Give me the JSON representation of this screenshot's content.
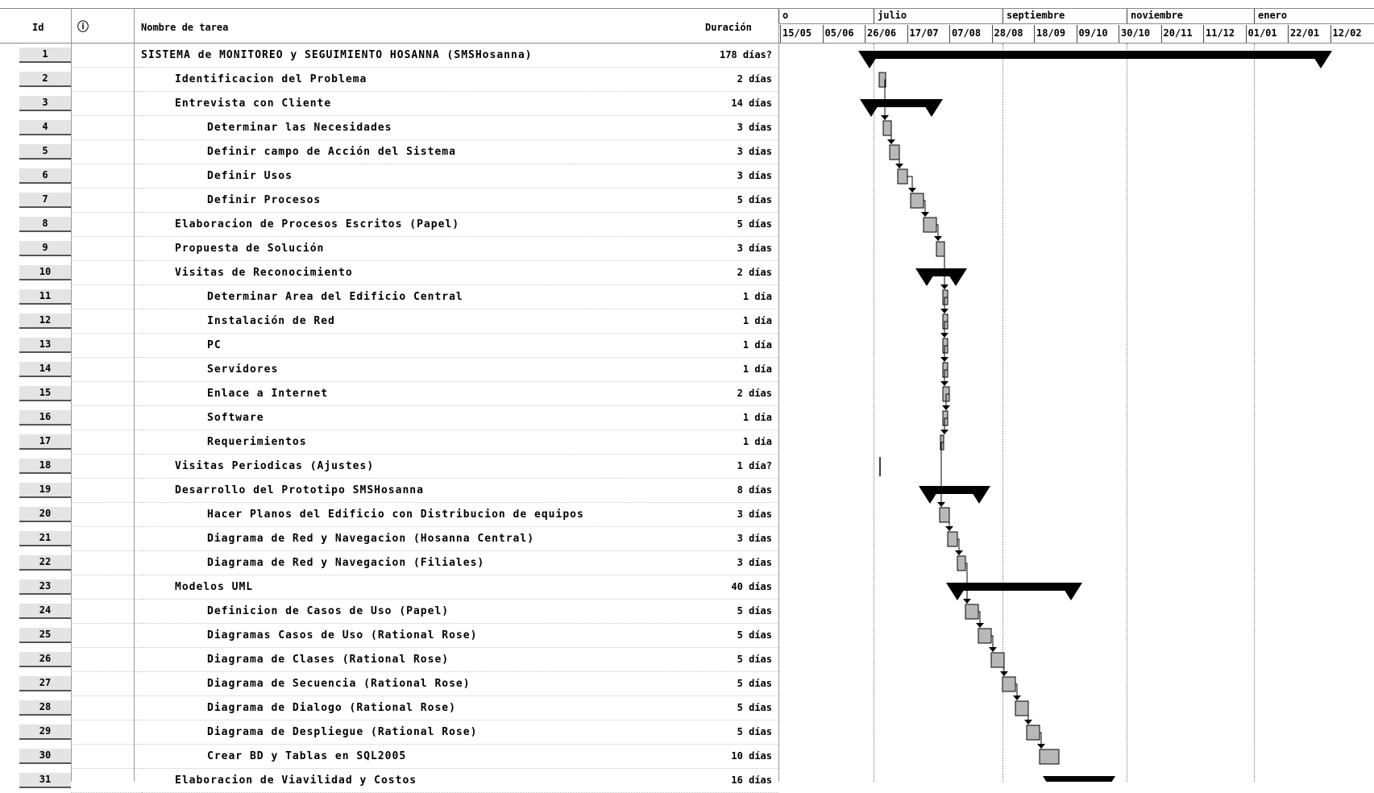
{
  "header": {
    "id_label": "Id",
    "indicator_icon": "info-indicator-icon",
    "name_label": "Nombre de tarea",
    "duration_label": "Duración"
  },
  "timescale": {
    "months": [
      "o",
      "julio",
      "septiembre",
      "noviembre",
      "enero"
    ],
    "dates": [
      "15/05",
      "05/06",
      "26/06",
      "17/07",
      "07/08",
      "28/08",
      "18/09",
      "09/10",
      "30/10",
      "20/11",
      "11/12",
      "01/01",
      "22/01",
      "12/02"
    ]
  },
  "tasks": [
    {
      "id": "1",
      "name": "SISTEMA de MONITOREO y SEGUIMIENTO HOSANNA (SMSHosanna)",
      "duration": "178 días?",
      "level": 0
    },
    {
      "id": "2",
      "name": "Identificacion del Problema",
      "duration": "2 días",
      "level": 1
    },
    {
      "id": "3",
      "name": "Entrevista con Cliente",
      "duration": "14 días",
      "level": 1
    },
    {
      "id": "4",
      "name": "Determinar las Necesidades",
      "duration": "3 días",
      "level": 2
    },
    {
      "id": "5",
      "name": "Definir campo de Acción del Sistema",
      "duration": "3 días",
      "level": 2
    },
    {
      "id": "6",
      "name": "Definir Usos",
      "duration": "3 días",
      "level": 2
    },
    {
      "id": "7",
      "name": "Definir Procesos",
      "duration": "5 días",
      "level": 2
    },
    {
      "id": "8",
      "name": "Elaboracion de Procesos Escritos (Papel)",
      "duration": "5 días",
      "level": 1
    },
    {
      "id": "9",
      "name": "Propuesta de Solución",
      "duration": "3 días",
      "level": 1
    },
    {
      "id": "10",
      "name": "Visitas de Reconocimiento",
      "duration": "2 días",
      "level": 1
    },
    {
      "id": "11",
      "name": "Determinar Area del Edificio Central",
      "duration": "1 día",
      "level": 2
    },
    {
      "id": "12",
      "name": "Instalación de Red",
      "duration": "1 día",
      "level": 2
    },
    {
      "id": "13",
      "name": "PC",
      "duration": "1 día",
      "level": 2
    },
    {
      "id": "14",
      "name": "Servidores",
      "duration": "1 día",
      "level": 2
    },
    {
      "id": "15",
      "name": "Enlace a Internet",
      "duration": "2 días",
      "level": 2
    },
    {
      "id": "16",
      "name": "Software",
      "duration": "1 día",
      "level": 2
    },
    {
      "id": "17",
      "name": "Requerimientos",
      "duration": "1 día",
      "level": 2
    },
    {
      "id": "18",
      "name": "Visitas Periodicas (Ajustes)",
      "duration": "1 día?",
      "level": 1
    },
    {
      "id": "19",
      "name": "Desarrollo del Prototipo SMSHosanna",
      "duration": "8 días",
      "level": 1
    },
    {
      "id": "20",
      "name": "Hacer Planos del Edificio con Distribucion de equipos",
      "duration": "3 días",
      "level": 2
    },
    {
      "id": "21",
      "name": "Diagrama de Red y Navegacion (Hosanna Central)",
      "duration": "3 días",
      "level": 2
    },
    {
      "id": "22",
      "name": "Diagrama de Red y Navegacion (Filiales)",
      "duration": "3 días",
      "level": 2
    },
    {
      "id": "23",
      "name": "Modelos UML",
      "duration": "40 días",
      "level": 1
    },
    {
      "id": "24",
      "name": "Definicion de Casos de Uso (Papel)",
      "duration": "5 días",
      "level": 2
    },
    {
      "id": "25",
      "name": "Diagramas Casos de Uso (Rational Rose)",
      "duration": "5 días",
      "level": 2
    },
    {
      "id": "26",
      "name": "Diagrama de Clases (Rational Rose)",
      "duration": "5 días",
      "level": 2
    },
    {
      "id": "27",
      "name": "Diagrama de Secuencia (Rational Rose)",
      "duration": "5 días",
      "level": 2
    },
    {
      "id": "28",
      "name": "Diagrama de Dialogo (Rational Rose)",
      "duration": "5 días",
      "level": 2
    },
    {
      "id": "29",
      "name": "Diagrama de Despliegue (Rational Rose)",
      "duration": "5 días",
      "level": 2
    },
    {
      "id": "30",
      "name": "Crear BD y Tablas en SQL2005",
      "duration": "10 días",
      "level": 2
    },
    {
      "id": "31",
      "name": "Elaboracion de Viavilidad y Costos",
      "duration": "16 días",
      "level": 1
    }
  ],
  "bar_colors": {
    "summary": "#000000",
    "task_fill": "#b8b8b8",
    "task_border": "#000000",
    "link": "#000000"
  }
}
